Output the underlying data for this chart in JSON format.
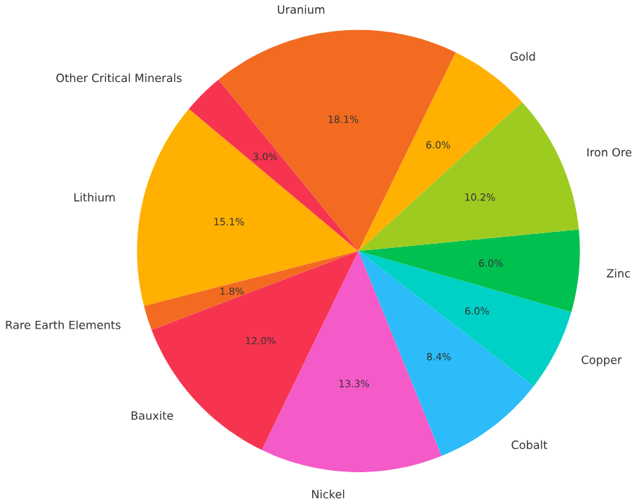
{
  "chart_data": {
    "type": "pie",
    "categories": [
      "Lithium",
      "Rare Earth Elements",
      "Bauxite",
      "Nickel",
      "Cobalt",
      "Copper",
      "Zinc",
      "Iron Ore",
      "Gold",
      "Uranium",
      "Other Critical Minerals"
    ],
    "values": [
      15.1,
      1.8,
      12.0,
      13.3,
      8.4,
      6.0,
      6.0,
      10.2,
      6.0,
      18.1,
      3.0
    ],
    "colors": [
      "#ffb000",
      "#f26b21",
      "#f6344f",
      "#f45ac8",
      "#2bbcf9",
      "#00d1c6",
      "#00c050",
      "#9ecb20",
      "#ffb000",
      "#f26b21",
      "#f6344f"
    ],
    "value_labels": [
      "15.1%",
      "1.8%",
      "12.0%",
      "13.3%",
      "8.4%",
      "6.0%",
      "6.0%",
      "10.2%",
      "6.0%",
      "18.1%",
      "3.0%"
    ]
  }
}
